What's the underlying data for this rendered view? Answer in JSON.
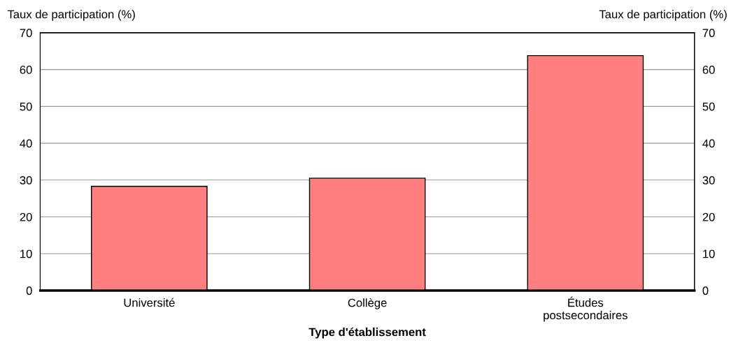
{
  "chart_data": {
    "type": "bar",
    "categories": [
      "Université",
      "Collège",
      "Études\npostsecondaires"
    ],
    "values": [
      28.3,
      30.5,
      63.8
    ],
    "color": "#ff7f7f",
    "xlabel": "Type d'établissement",
    "ylabel": "Taux de participation (%)",
    "y2label": "Taux de participation (%)",
    "ylim": [
      0,
      70
    ],
    "yticks": [
      0,
      10,
      20,
      30,
      40,
      50,
      60,
      70
    ],
    "y2lim": [
      0,
      70
    ],
    "y2ticks": [
      0,
      10,
      20,
      30,
      40,
      50,
      60,
      70
    ],
    "grid": "y"
  }
}
